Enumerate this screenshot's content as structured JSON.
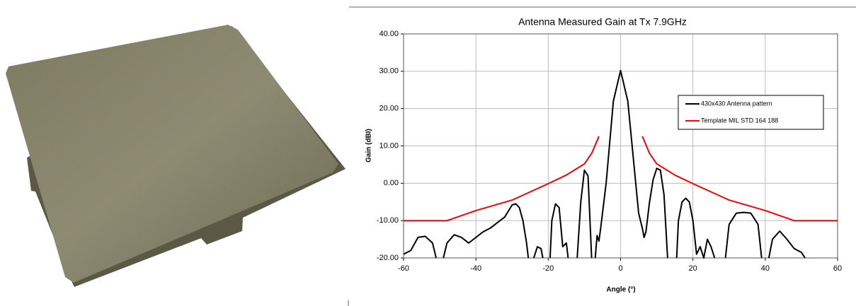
{
  "chart_data": {
    "type": "line",
    "title": "Antenna Measured Gain at Tx 7.9GHz",
    "x_label": "Angle (°)",
    "y_label": "Gain (dBI)",
    "xlim": [
      -60,
      60
    ],
    "xticks": [
      -60,
      -40,
      -20,
      0,
      20,
      40,
      60
    ],
    "ylim": [
      -20,
      40
    ],
    "yticks": [
      {
        "value": -20,
        "label": "-20.00"
      },
      {
        "value": -10,
        "label": "-10.00"
      },
      {
        "value": 0,
        "label": "0.00"
      },
      {
        "value": 10,
        "label": "10.00"
      },
      {
        "value": 20,
        "label": "20.00"
      },
      {
        "value": 30,
        "label": "30.00"
      },
      {
        "value": 40,
        "label": "40.00"
      }
    ],
    "grid": true,
    "legend": "upper right",
    "series": [
      {
        "name": "430x430 Antenna pattern",
        "color": "#000000",
        "x": [
          -60,
          -58,
          -56,
          -54,
          -52,
          -51,
          -50,
          -49,
          -48,
          -46,
          -44,
          -42,
          -40,
          -38,
          -36,
          -34,
          -32,
          -30,
          -29,
          -28,
          -27,
          -26,
          -25.5,
          -25,
          -24,
          -23,
          -22,
          -21.5,
          -21,
          -19.5,
          -19,
          -18,
          -17,
          -16,
          -15,
          -14.5,
          -13,
          -12,
          -11,
          -10,
          -9,
          -8,
          -7.5,
          -7,
          -6.5,
          -6,
          -5.5,
          -4,
          -2,
          0,
          2,
          4,
          5,
          6,
          6.5,
          7,
          8,
          9,
          10,
          11,
          12,
          13,
          14,
          15.5,
          16,
          17,
          18,
          19,
          20,
          21,
          22,
          23,
          24,
          25,
          26,
          27,
          29,
          30,
          32,
          34,
          36,
          38,
          39,
          40,
          41,
          42,
          44,
          46,
          48,
          50,
          51
        ],
        "values": [
          -19,
          -18,
          -14.5,
          -14.2,
          -16,
          -20,
          null,
          -20,
          -16,
          -13.8,
          -14.5,
          -16,
          -14.5,
          -13,
          -12,
          -10.5,
          -9,
          -5.8,
          -5.5,
          -6.5,
          -10,
          -16,
          -20,
          null,
          -20,
          -17,
          -17.5,
          -20,
          null,
          -20,
          -10,
          -5.5,
          -6.5,
          -17,
          -16,
          -20,
          null,
          -20,
          -5,
          3.5,
          2,
          -20,
          null,
          -20,
          -14,
          -15.5,
          -12,
          0,
          22,
          30.2,
          22,
          2,
          -8,
          -12,
          -14.5,
          -13,
          -5,
          1,
          4,
          3.5,
          -3,
          -20,
          null,
          -20,
          -10,
          -5,
          -4,
          -5,
          -10,
          -19,
          -17,
          -20,
          -15,
          -17,
          -20,
          null,
          -20,
          -11,
          -8,
          -7.8,
          -8,
          -11,
          -20,
          null,
          -20,
          -15,
          -12.8,
          -15,
          -17.5,
          -18.5,
          -20
        ]
      },
      {
        "name": "Template MIL STD 164 188",
        "color": "#ff0000",
        "x": [
          -60,
          -48,
          -40,
          -30,
          -20,
          -15,
          -10,
          -8,
          -6,
          0,
          6,
          8,
          10,
          15,
          20,
          30,
          40,
          48,
          60
        ],
        "values": [
          -10,
          -10,
          -7.3,
          -4.5,
          -0.1,
          2.2,
          5.2,
          8,
          12.6,
          null,
          12.6,
          8,
          5.2,
          2.2,
          -0.1,
          -4.5,
          -7.3,
          -10,
          -10
        ]
      }
    ]
  }
}
